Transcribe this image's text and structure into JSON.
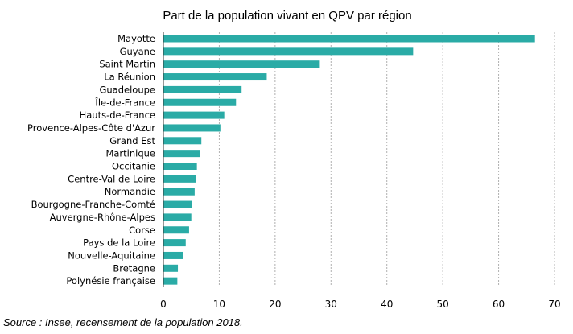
{
  "chart_data": {
    "type": "bar",
    "orientation": "horizontal",
    "title": "Part de la population vivant en QPV par région",
    "categories": [
      "Mayotte",
      "Guyane",
      "Saint Martin",
      "La Réunion",
      "Guadeloupe",
      "Île-de-France",
      "Hauts-de-France",
      "Provence-Alpes-Côte d'Azur",
      "Grand Est",
      "Martinique",
      "Occitanie",
      "Centre-Val de Loire",
      "Normandie",
      "Bourgogne-Franche-Comté",
      "Auvergne-Rhône-Alpes",
      "Corse",
      "Pays de la Loire",
      "Nouvelle-Aquitaine",
      "Bretagne",
      "Polynésie française"
    ],
    "values": [
      66.5,
      44.7,
      28.0,
      18.5,
      14.0,
      13.0,
      10.9,
      10.2,
      6.8,
      6.5,
      6.0,
      5.8,
      5.6,
      5.1,
      5.0,
      4.6,
      4.0,
      3.6,
      2.6,
      2.5
    ],
    "xlim": [
      0,
      70
    ],
    "xticks": [
      "0",
      "10",
      "20",
      "30",
      "40",
      "50",
      "60",
      "70"
    ],
    "xtick_values": [
      0,
      10,
      20,
      30,
      40,
      50,
      60,
      70
    ],
    "grid": true,
    "bar_color": "#2aaba6",
    "xlabel": "",
    "ylabel": ""
  },
  "source": "Source : Insee, recensement de la population 2018."
}
